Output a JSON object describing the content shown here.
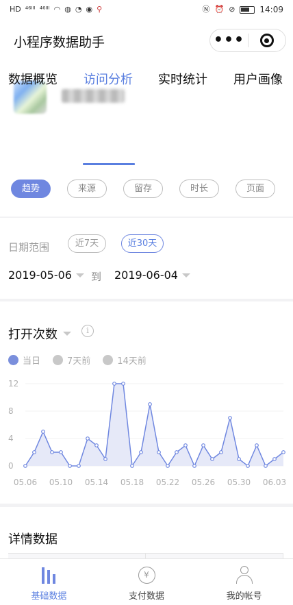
{
  "status_bar": {
    "left_icons": [
      "HD",
      "⁴⁶ᴵᴵᴵ",
      "⁴⁶ᴵᴵᴵ",
      "wifi-icon",
      "wechat-icon",
      "qq-icon",
      "message-icon",
      "location-icon"
    ],
    "time": "14:09"
  },
  "navbar": {
    "title": "小程序数据助手",
    "more_label": "•••"
  },
  "tabs": [
    {
      "label": "数据概览",
      "active": false
    },
    {
      "label": "访问分析",
      "active": true
    },
    {
      "label": "实时统计",
      "active": false
    },
    {
      "label": "用户画像",
      "active": false
    }
  ],
  "subtabs": [
    {
      "label": "趋势",
      "active": true
    },
    {
      "label": "来源",
      "active": false
    },
    {
      "label": "留存",
      "active": false
    },
    {
      "label": "时长",
      "active": false
    },
    {
      "label": "页面",
      "active": false
    }
  ],
  "date_range": {
    "label": "日期范围",
    "chips": [
      {
        "label": "近7天",
        "active": false
      },
      {
        "label": "近30天",
        "active": true
      }
    ],
    "start": "2019-05-06",
    "to": "到",
    "end": "2019-06-04"
  },
  "chart_section": {
    "title": "打开次数",
    "info_label": "i",
    "legend": [
      {
        "name": "当日",
        "active": true
      },
      {
        "name": "7天前",
        "active": false
      },
      {
        "name": "14天前",
        "active": false
      }
    ]
  },
  "chart_data": {
    "type": "area",
    "y_ticks": [
      0,
      4,
      8,
      12
    ],
    "ylim": [
      0,
      12
    ],
    "x_tick_labels": [
      "05.06",
      "05.10",
      "05.14",
      "05.18",
      "05.22",
      "05.26",
      "05.30",
      "06.03"
    ],
    "series": [
      {
        "name": "当日",
        "color": "#6f87e0",
        "fill": "#e6e9f8",
        "x": [
          "05.06",
          "05.07",
          "05.08",
          "05.09",
          "05.10",
          "05.11",
          "05.12",
          "05.13",
          "05.14",
          "05.15",
          "05.16",
          "05.17",
          "05.18",
          "05.19",
          "05.20",
          "05.21",
          "05.22",
          "05.23",
          "05.24",
          "05.25",
          "05.26",
          "05.27",
          "05.28",
          "05.29",
          "05.30",
          "05.31",
          "06.01",
          "06.02",
          "06.03",
          "06.04"
        ],
        "values": [
          0,
          2,
          5,
          2,
          2,
          0,
          0,
          4,
          3,
          1,
          12,
          12,
          0,
          2,
          9,
          2,
          0,
          2,
          3,
          0,
          3,
          1,
          2,
          7,
          1,
          0,
          3,
          0,
          1,
          2
        ]
      }
    ]
  },
  "detail_section": {
    "title": "详情数据"
  },
  "bottom_nav": [
    {
      "label": "基础数据",
      "icon": "bar-chart-icon",
      "active": true
    },
    {
      "label": "支付数据",
      "icon": "yuan-coin-icon",
      "active": false
    },
    {
      "label": "我的帐号",
      "icon": "user-icon",
      "active": false
    }
  ],
  "colors": {
    "accent": "#6f87e0",
    "accent_text": "#5a7fe0",
    "inactive_gray": "#c8c8c8"
  }
}
